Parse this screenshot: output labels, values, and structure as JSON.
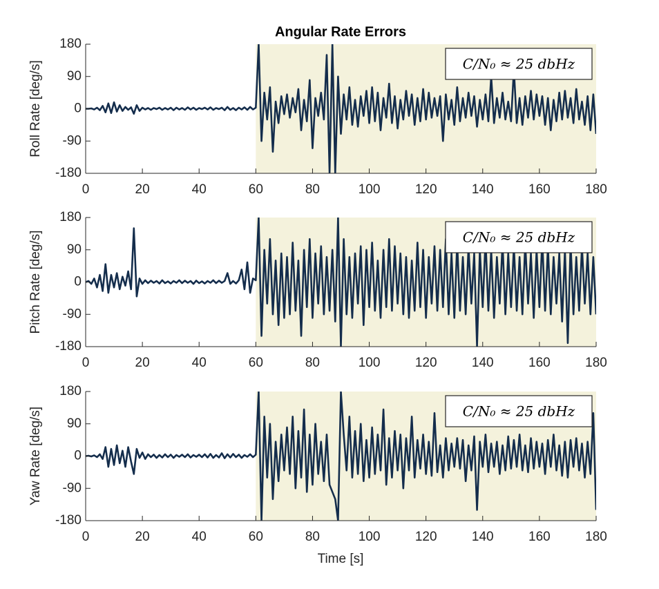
{
  "chart_data": [
    {
      "type": "line",
      "title": "Angular Rate Errors",
      "ylabel": "Roll Rate [deg/s]",
      "annotation": "C/N₀ ≈ 25 dbHz",
      "highlight": [
        60,
        180
      ],
      "highlight_color": "#f4f2dc",
      "xlim": [
        0,
        180
      ],
      "xticks": [
        0,
        20,
        40,
        60,
        80,
        100,
        120,
        140,
        160,
        180
      ],
      "ylim": [
        -180,
        180
      ],
      "yticks": [
        -180,
        -90,
        0,
        90,
        180
      ],
      "x": [
        0,
        1,
        2,
        3,
        4,
        5,
        6,
        7,
        8,
        9,
        10,
        11,
        12,
        13,
        14,
        15,
        16,
        17,
        18,
        19,
        20,
        21,
        22,
        23,
        24,
        25,
        26,
        27,
        28,
        29,
        30,
        31,
        32,
        33,
        34,
        35,
        36,
        37,
        38,
        39,
        40,
        41,
        42,
        43,
        44,
        45,
        46,
        47,
        48,
        49,
        50,
        51,
        52,
        53,
        54,
        55,
        56,
        57,
        58,
        59,
        60,
        61,
        62,
        63,
        64,
        65,
        66,
        67,
        68,
        69,
        70,
        71,
        72,
        73,
        74,
        75,
        76,
        77,
        78,
        79,
        80,
        81,
        82,
        83,
        84,
        85,
        86,
        87,
        88,
        89,
        90,
        91,
        92,
        93,
        94,
        95,
        96,
        97,
        98,
        99,
        100,
        101,
        102,
        103,
        104,
        105,
        106,
        107,
        108,
        109,
        110,
        111,
        112,
        113,
        114,
        115,
        116,
        117,
        118,
        119,
        120,
        121,
        122,
        123,
        124,
        125,
        126,
        127,
        128,
        129,
        130,
        131,
        132,
        133,
        134,
        135,
        136,
        137,
        138,
        139,
        140,
        141,
        142,
        143,
        144,
        145,
        146,
        147,
        148,
        149,
        150,
        151,
        152,
        153,
        154,
        155,
        156,
        157,
        158,
        159,
        160,
        161,
        162,
        163,
        164,
        165,
        166,
        167,
        168,
        169,
        170,
        171,
        172,
        173,
        174,
        175,
        176,
        177,
        178,
        179,
        180
      ],
      "series": [
        {
          "color": "#142d4c",
          "values": [
            0,
            0,
            1,
            -2,
            3,
            -4,
            8,
            -10,
            15,
            -12,
            18,
            -8,
            10,
            -6,
            5,
            -3,
            4,
            -14,
            10,
            -6,
            3,
            -2,
            2,
            -3,
            2,
            -1,
            3,
            -3,
            2,
            -2,
            3,
            -4,
            3,
            -2,
            2,
            -3,
            4,
            -2,
            3,
            -3,
            2,
            -1,
            3,
            -2,
            4,
            -3,
            2,
            -1,
            3,
            -4,
            5,
            -3,
            2,
            -4,
            3,
            -2,
            4,
            -3,
            5,
            -2,
            3,
            180,
            -90,
            45,
            -30,
            60,
            -120,
            20,
            -40,
            35,
            -15,
            40,
            -25,
            30,
            -10,
            55,
            -60,
            25,
            -35,
            80,
            -110,
            30,
            -20,
            45,
            -30,
            150,
            -180,
            180,
            -180,
            90,
            -70,
            40,
            -30,
            60,
            -45,
            25,
            -50,
            35,
            -20,
            50,
            -40,
            60,
            -35,
            45,
            -60,
            30,
            -25,
            70,
            -40,
            35,
            -55,
            25,
            -30,
            50,
            -20,
            40,
            -45,
            30,
            -35,
            55,
            -30,
            45,
            -25,
            30,
            -20,
            35,
            -90,
            40,
            -30,
            25,
            -45,
            60,
            -35,
            30,
            -25,
            45,
            -20,
            35,
            -50,
            25,
            -30,
            40,
            -35,
            90,
            -40,
            30,
            -25,
            45,
            -30,
            20,
            -35,
            110,
            -40,
            30,
            -45,
            35,
            -25,
            50,
            -30,
            40,
            -20,
            35,
            -45,
            30,
            -60,
            25,
            -35,
            45,
            -30,
            50,
            -25,
            30,
            -40,
            55,
            -30,
            20,
            -45,
            35,
            -60,
            40,
            -70
          ]
        }
      ]
    },
    {
      "type": "line",
      "ylabel": "Pitch Rate [deg/s]",
      "annotation": "C/N₀ ≈ 25 dbHz",
      "highlight": [
        60,
        180
      ],
      "highlight_color": "#f4f2dc",
      "xlim": [
        0,
        180
      ],
      "xticks": [
        0,
        20,
        40,
        60,
        80,
        100,
        120,
        140,
        160,
        180
      ],
      "ylim": [
        -180,
        180
      ],
      "yticks": [
        -180,
        -90,
        0,
        90,
        180
      ],
      "x": [
        0,
        1,
        2,
        3,
        4,
        5,
        6,
        7,
        8,
        9,
        10,
        11,
        12,
        13,
        14,
        15,
        16,
        17,
        18,
        19,
        20,
        21,
        22,
        23,
        24,
        25,
        26,
        27,
        28,
        29,
        30,
        31,
        32,
        33,
        34,
        35,
        36,
        37,
        38,
        39,
        40,
        41,
        42,
        43,
        44,
        45,
        46,
        47,
        48,
        49,
        50,
        51,
        52,
        53,
        54,
        55,
        56,
        57,
        58,
        59,
        60,
        61,
        62,
        63,
        64,
        65,
        66,
        67,
        68,
        69,
        70,
        71,
        72,
        73,
        74,
        75,
        76,
        77,
        78,
        79,
        80,
        81,
        82,
        83,
        84,
        85,
        86,
        87,
        88,
        89,
        90,
        91,
        92,
        93,
        94,
        95,
        96,
        97,
        98,
        99,
        100,
        101,
        102,
        103,
        104,
        105,
        106,
        107,
        108,
        109,
        110,
        111,
        112,
        113,
        114,
        115,
        116,
        117,
        118,
        119,
        120,
        121,
        122,
        123,
        124,
        125,
        126,
        127,
        128,
        129,
        130,
        131,
        132,
        133,
        134,
        135,
        136,
        137,
        138,
        139,
        140,
        141,
        142,
        143,
        144,
        145,
        146,
        147,
        148,
        149,
        150,
        151,
        152,
        153,
        154,
        155,
        156,
        157,
        158,
        159,
        160,
        161,
        162,
        163,
        164,
        165,
        166,
        167,
        168,
        169,
        170,
        171,
        172,
        173,
        174,
        175,
        176,
        177,
        178,
        179,
        180
      ],
      "series": [
        {
          "color": "#142d4c",
          "values": [
            0,
            3,
            -5,
            10,
            -15,
            20,
            -25,
            50,
            -30,
            20,
            -15,
            25,
            -20,
            15,
            -10,
            30,
            -20,
            150,
            -40,
            10,
            -5,
            5,
            -3,
            4,
            -2,
            3,
            -4,
            5,
            -3,
            2,
            -4,
            3,
            -2,
            5,
            -3,
            4,
            -2,
            3,
            -5,
            4,
            -3,
            2,
            -4,
            3,
            -2,
            5,
            -3,
            4,
            -2,
            3,
            25,
            -5,
            3,
            -4,
            5,
            35,
            -20,
            55,
            -30,
            10,
            5,
            180,
            -150,
            90,
            -60,
            120,
            -90,
            60,
            -120,
            80,
            -100,
            70,
            -90,
            110,
            -80,
            60,
            -150,
            90,
            -70,
            120,
            -100,
            80,
            -60,
            100,
            -90,
            70,
            -80,
            90,
            -110,
            180,
            -180,
            120,
            -90,
            70,
            -100,
            80,
            -60,
            100,
            -120,
            90,
            -70,
            110,
            -80,
            60,
            -100,
            90,
            -70,
            120,
            -80,
            100,
            -60,
            80,
            -90,
            70,
            -100,
            60,
            -80,
            110,
            -70,
            90,
            -100,
            70,
            -60,
            100,
            -80,
            90,
            -70,
            120,
            -90,
            80,
            -100,
            110,
            -80,
            70,
            -90,
            100,
            -60,
            80,
            -180,
            90,
            -70,
            120,
            -80,
            90,
            -100,
            70,
            -60,
            110,
            -90,
            80,
            -70,
            100,
            -80,
            70,
            -90,
            110,
            -60,
            80,
            -100,
            90,
            -70,
            120,
            -80,
            100,
            -90,
            70,
            -60,
            80,
            -110,
            90,
            -170,
            110,
            -90,
            70,
            -80,
            100,
            -60,
            80,
            -90,
            70,
            -90
          ]
        }
      ]
    },
    {
      "type": "line",
      "ylabel": "Yaw Rate [deg/s]",
      "xlabel": "Time [s]",
      "annotation": "C/N₀ ≈ 25 dbHz",
      "highlight": [
        60,
        180
      ],
      "highlight_color": "#f4f2dc",
      "xlim": [
        0,
        180
      ],
      "xticks": [
        0,
        20,
        40,
        60,
        80,
        100,
        120,
        140,
        160,
        180
      ],
      "ylim": [
        -180,
        180
      ],
      "yticks": [
        -180,
        -90,
        0,
        90,
        180
      ],
      "x": [
        0,
        1,
        2,
        3,
        4,
        5,
        6,
        7,
        8,
        9,
        10,
        11,
        12,
        13,
        14,
        15,
        16,
        17,
        18,
        19,
        20,
        21,
        22,
        23,
        24,
        25,
        26,
        27,
        28,
        29,
        30,
        31,
        32,
        33,
        34,
        35,
        36,
        37,
        38,
        39,
        40,
        41,
        42,
        43,
        44,
        45,
        46,
        47,
        48,
        49,
        50,
        51,
        52,
        53,
        54,
        55,
        56,
        57,
        58,
        59,
        60,
        61,
        62,
        63,
        64,
        65,
        66,
        67,
        68,
        69,
        70,
        71,
        72,
        73,
        74,
        75,
        76,
        77,
        78,
        79,
        80,
        81,
        82,
        83,
        84,
        85,
        86,
        87,
        88,
        89,
        90,
        91,
        92,
        93,
        94,
        95,
        96,
        97,
        98,
        99,
        100,
        101,
        102,
        103,
        104,
        105,
        106,
        107,
        108,
        109,
        110,
        111,
        112,
        113,
        114,
        115,
        116,
        117,
        118,
        119,
        120,
        121,
        122,
        123,
        124,
        125,
        126,
        127,
        128,
        129,
        130,
        131,
        132,
        133,
        134,
        135,
        136,
        137,
        138,
        139,
        140,
        141,
        142,
        143,
        144,
        145,
        146,
        147,
        148,
        149,
        150,
        151,
        152,
        153,
        154,
        155,
        156,
        157,
        158,
        159,
        160,
        161,
        162,
        163,
        164,
        165,
        166,
        167,
        168,
        169,
        170,
        171,
        172,
        173,
        174,
        175,
        176,
        177,
        178,
        179,
        180
      ],
      "series": [
        {
          "color": "#142d4c",
          "values": [
            0,
            1,
            -1,
            2,
            -3,
            5,
            -8,
            25,
            -30,
            20,
            -25,
            30,
            -20,
            15,
            -30,
            25,
            -15,
            -50,
            20,
            -5,
            10,
            -8,
            5,
            -3,
            4,
            -5,
            3,
            -4,
            5,
            -3,
            4,
            -5,
            3,
            -2,
            4,
            -3,
            5,
            -4,
            3,
            -2,
            4,
            -3,
            5,
            -4,
            6,
            -5,
            3,
            -4,
            8,
            -6,
            5,
            -4,
            6,
            -3,
            4,
            -5,
            3,
            -2,
            5,
            -3,
            4,
            180,
            -180,
            110,
            -60,
            90,
            -120,
            40,
            -70,
            60,
            -40,
            80,
            -50,
            110,
            -90,
            70,
            -60,
            130,
            -100,
            60,
            -80,
            90,
            -50,
            40,
            -70,
            60,
            -80,
            -100,
            -120,
            -180,
            180,
            60,
            -40,
            110,
            -60,
            70,
            -50,
            90,
            -70,
            45,
            -60,
            80,
            -50,
            60,
            -40,
            130,
            -80,
            50,
            -60,
            70,
            -40,
            60,
            -90,
            50,
            -40,
            110,
            -60,
            45,
            -35,
            60,
            -50,
            40,
            -55,
            120,
            -45,
            30,
            -60,
            50,
            -40,
            35,
            -30,
            50,
            -35,
            45,
            -70,
            30,
            -40,
            55,
            -150,
            40,
            -30,
            60,
            -45,
            35,
            -30,
            40,
            -50,
            30,
            -40,
            55,
            -35,
            45,
            -30,
            60,
            -40,
            30,
            -45,
            50,
            -35,
            40,
            -30,
            35,
            -50,
            45,
            -30,
            60,
            -40,
            30,
            -55,
            40,
            -60,
            45,
            -30,
            50,
            -40,
            35,
            -60,
            40,
            -50,
            120,
            -150
          ]
        }
      ]
    }
  ]
}
